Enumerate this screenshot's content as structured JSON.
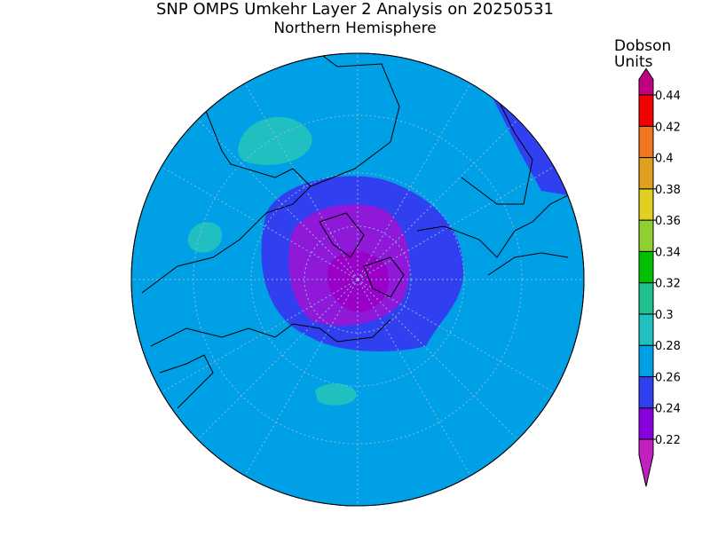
{
  "title": "SNP OMPS Umkehr Layer 2 Analysis on 20250531",
  "subtitle": "Northern Hemisphere",
  "colorbar": {
    "units": [
      "Dobson",
      "Units"
    ],
    "ticks": [
      0.22,
      0.24,
      0.26,
      0.28,
      0.3,
      0.32,
      0.34,
      0.36,
      0.38,
      0.4,
      0.42,
      0.44
    ],
    "colors": [
      "#c020c0",
      "#8800e0",
      "#3040f0",
      "#00a0e6",
      "#20c0c0",
      "#20c090",
      "#00c000",
      "#90d030",
      "#e0d020",
      "#e0a020",
      "#f07820",
      "#f00000",
      "#c00080"
    ]
  }
}
